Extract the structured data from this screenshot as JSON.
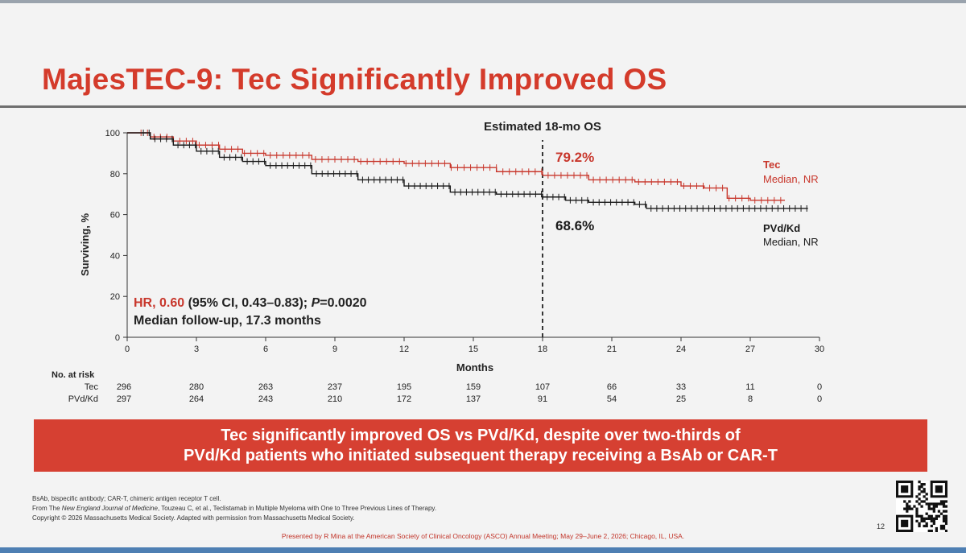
{
  "slide": {
    "title": "MajesTEC-9: Tec Significantly Improved OS",
    "banner_line1": "Tec significantly improved OS vs PVd/Kd, despite over two-thirds of",
    "banner_line2": "PVd/Kd patients who initiated subsequent therapy receiving a BsAb or CAR-T",
    "footnote1": "BsAb, bispecific antibody; CAR-T, chimeric antigen receptor T cell.",
    "footnote2_pre": "From The ",
    "footnote2_journal": "New England Journal of Medicine",
    "footnote2_post": ", Touzeau C, et al., Teclistamab in Multiple Myeloma with One to Three Previous Lines of Therapy.",
    "footnote3": "Copyright © 2026 Massachusetts Medical Society. Adapted with permission from Massachusetts Medical Society.",
    "presented_by": "Presented by R Mina at the American Society of Clinical Oncology (ASCO) Annual Meeting; May 29–June 2, 2026; Chicago, IL, USA.",
    "page_number": "12"
  },
  "colors": {
    "accent_red": "#d43b2b",
    "tec": "#c8372c",
    "pvd": "#1a1a1a",
    "banner": "#d64032"
  },
  "chart_data": {
    "type": "line",
    "xlabel": "Months",
    "ylabel": "Surviving, %",
    "xlim": [
      0,
      30
    ],
    "ylim": [
      0,
      100
    ],
    "x_ticks": [
      0,
      3,
      6,
      9,
      12,
      15,
      18,
      21,
      24,
      27,
      30
    ],
    "y_ticks": [
      0,
      20,
      40,
      60,
      80,
      100
    ],
    "reference_line": {
      "x": 18,
      "label": "Estimated 18-mo OS"
    },
    "series": [
      {
        "name": "Tec",
        "median_label": "Median, NR",
        "estimate_label": "79.2%",
        "color": "#c8372c",
        "x": [
          0,
          1,
          2,
          3,
          4,
          5,
          6,
          8,
          10,
          12,
          14,
          16,
          18,
          20,
          22,
          24,
          25,
          26,
          27,
          28.5
        ],
        "y": [
          100,
          98,
          96,
          94,
          92,
          90,
          89,
          87,
          86,
          85,
          83,
          81,
          79.2,
          77,
          76,
          74,
          73,
          68,
          67,
          67
        ]
      },
      {
        "name": "PVd/Kd",
        "median_label": "Median, NR",
        "estimate_label": "68.6%",
        "color": "#1a1a1a",
        "x": [
          0,
          1,
          2,
          3,
          4,
          5,
          6,
          8,
          10,
          12,
          14,
          16,
          18,
          19,
          20,
          22,
          22.5,
          24,
          26,
          28,
          29.5
        ],
        "y": [
          100,
          97,
          94,
          91,
          88,
          86,
          84,
          80,
          77,
          74,
          71,
          70,
          68.6,
          67,
          66,
          65,
          63,
          63,
          63,
          63,
          63
        ]
      }
    ],
    "annotation": {
      "hr_label": "HR, 0.60",
      "hr_detail": " (95% CI, 0.43–0.83); ",
      "p_italic": "P",
      "p_value": "=0.0020",
      "followup": "Median follow-up, 17.3 months"
    },
    "risk_table": {
      "header": "No. at risk",
      "months": [
        0,
        3,
        6,
        9,
        12,
        15,
        18,
        21,
        24,
        27,
        30
      ],
      "rows": [
        {
          "label": "Tec",
          "values": [
            296,
            280,
            263,
            237,
            195,
            159,
            107,
            66,
            33,
            11,
            0
          ]
        },
        {
          "label": "PVd/Kd",
          "values": [
            297,
            264,
            243,
            210,
            172,
            137,
            91,
            54,
            25,
            8,
            0
          ]
        }
      ]
    }
  }
}
